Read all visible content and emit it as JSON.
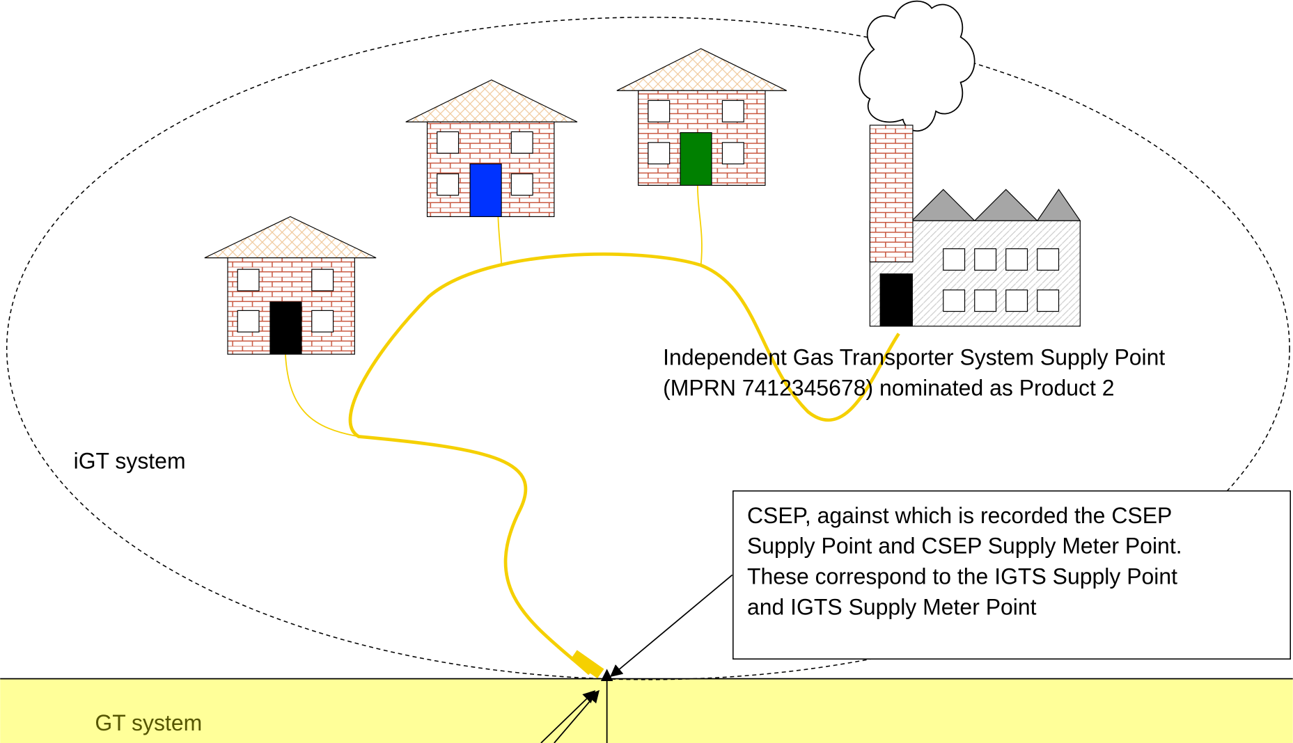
{
  "labels": {
    "igt_system": "iGT system",
    "gt_system": "GT system",
    "igt_supply_point": [
      "Independent Gas Transporter System Supply Point",
      "(MPRN 7412345678) nominated as Product 2"
    ],
    "csep_note": [
      "CSEP, against which is recorded the CSEP",
      "Supply Point and CSEP Supply Meter Point.",
      "These correspond to the IGTS Supply Point",
      "and IGTS Supply Meter Point"
    ]
  }
}
